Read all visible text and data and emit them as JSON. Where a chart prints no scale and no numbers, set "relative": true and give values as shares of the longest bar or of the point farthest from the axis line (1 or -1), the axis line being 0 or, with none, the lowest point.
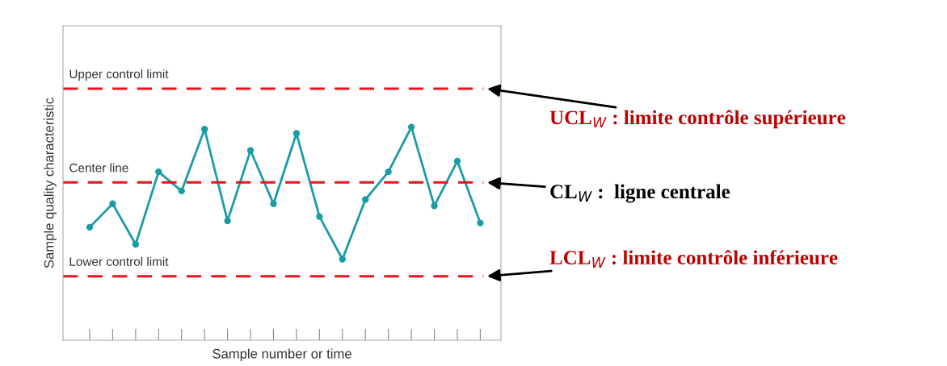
{
  "chart_data": {
    "type": "line",
    "relative": true,
    "xlabel": "Sample number or time",
    "ylabel": "Sample quality characteristic",
    "categories": [
      null,
      null,
      null,
      null,
      null,
      null,
      null,
      null,
      null,
      null,
      null,
      null,
      null,
      null,
      null,
      null,
      null,
      null
    ],
    "series": [
      {
        "color": "#1a9ba8",
        "values": [
          0.53,
          0.64,
          0.45,
          0.79,
          0.7,
          0.99,
          0.56,
          0.89,
          0.64,
          0.97,
          0.58,
          0.38,
          0.66,
          0.79,
          1.0,
          0.63,
          0.84,
          0.55
        ]
      }
    ],
    "marker": "circle",
    "line_style": "solid",
    "grid": false,
    "legend": false,
    "ref_lines": [
      {
        "axis": "y",
        "value": 1.18,
        "label": "Upper control limit",
        "color": "#e8141b",
        "line_style": "dashed"
      },
      {
        "axis": "y",
        "value": 0.74,
        "label": "Center line",
        "color": "#e8141b",
        "line_style": "dashed"
      },
      {
        "axis": "y",
        "value": 0.3,
        "label": "Lower control limit",
        "color": "#e8141b",
        "line_style": "dashed"
      }
    ],
    "annotations": [
      "UCL$_{W}$ : limite contrôle supérieure",
      "CL$_{W}$ :  ligne centrale",
      "LCL$_{W}$ : limite contrôle inférieure"
    ]
  }
}
